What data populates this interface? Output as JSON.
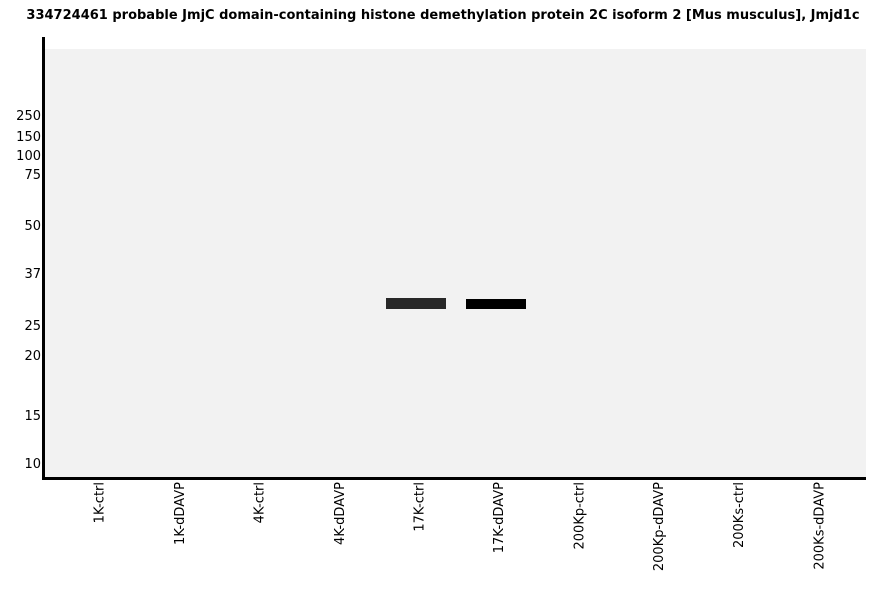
{
  "page_bg": "#ffffff",
  "plot_bg": "#f2f2f2",
  "axis_color": "#000000",
  "chart_data": {
    "type": "gel-blot",
    "title": "334724461 probable JmjC domain-containing histone demethylation protein 2C isoform 2 [Mus musculus], Jmjd1c",
    "y_axis": {
      "ticks": [
        250,
        150,
        100,
        75,
        50,
        37,
        25,
        20,
        15,
        10
      ],
      "scale": "molecular-weight-ladder",
      "tick_side": "left",
      "grid": false
    },
    "x_axis": {
      "label_rotation_deg": 90,
      "lanes": [
        "1K-ctrl",
        "1K-dDAVP",
        "4K-ctrl",
        "4K-dDAVP",
        "17K-ctrl",
        "17K-dDAVP",
        "200Kp-ctrl",
        "200Kp-dDAVP",
        "200Ks-ctrl",
        "200Ks-dDAVP"
      ]
    },
    "bands": [
      {
        "lane": "17K-ctrl",
        "lane_index": 4,
        "approx_mw": 29,
        "color": "#282828",
        "relative_intensity": 0.85
      },
      {
        "lane": "17K-dDAVP",
        "lane_index": 5,
        "approx_mw": 29,
        "color": "#000000",
        "relative_intensity": 1.0
      }
    ],
    "legend": null
  }
}
